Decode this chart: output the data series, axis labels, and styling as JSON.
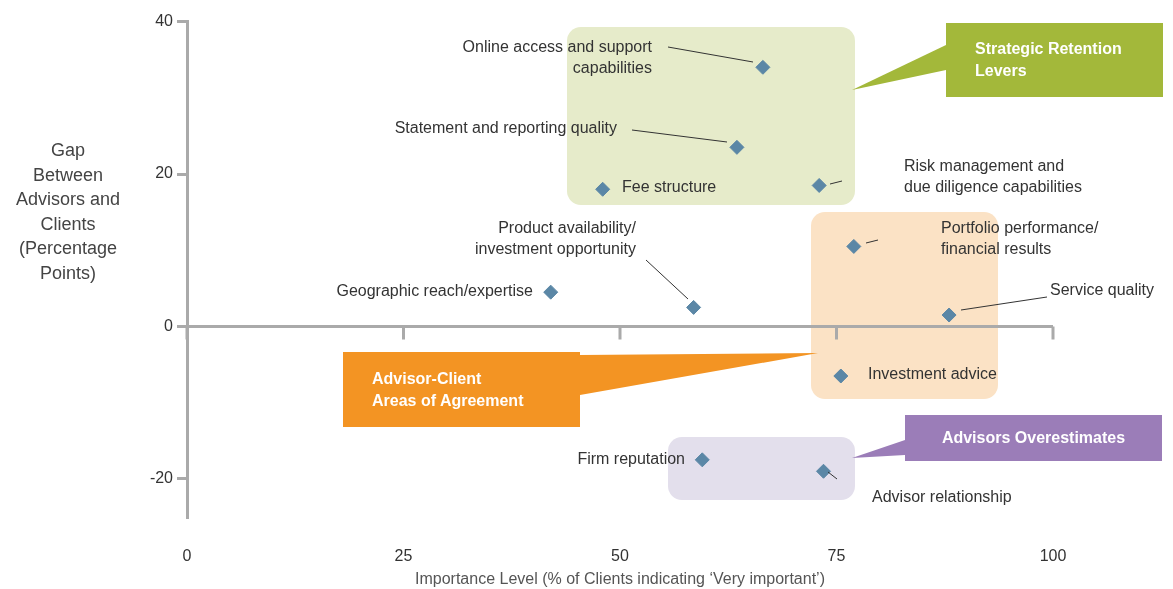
{
  "chart_data": {
    "type": "scatter",
    "xlabel": "Importance Level (% of Clients indicating ‘Very important’)",
    "ylabel": "Gap\nBetween\nAdvisors and\nClients\n(Percentage\nPoints)",
    "x": [
      66.5,
      63.5,
      48,
      73,
      77,
      58.5,
      42,
      88,
      75.5,
      59.5,
      73.5
    ],
    "values": [
      34,
      23.5,
      18,
      18.5,
      10.5,
      2.5,
      4.5,
      1.5,
      -6.5,
      -17.5,
      -19
    ],
    "color": "#5b87a6",
    "marker": "diamond",
    "xlim": [
      0,
      100
    ],
    "xticks": [
      0,
      25,
      50,
      75,
      100
    ],
    "ylim": [
      -25,
      40
    ],
    "yticks": [
      -20,
      0,
      20,
      40
    ],
    "annotations": [
      "Online access and support\ncapabilities",
      "Statement and reporting quality",
      "Fee structure",
      "Risk management and\ndue diligence capabilities",
      "Portfolio performance/\nfinancial results",
      "Product availability/\ninvestment opportunity",
      "Geographic reach/expertise",
      "Service quality",
      "Investment advice",
      "Firm reputation",
      "Advisor relationship",
      "Strategic Retention\nLevers",
      "Advisor-Client\nAreas of Agreement",
      "Advisors Overestimates"
    ]
  }
}
